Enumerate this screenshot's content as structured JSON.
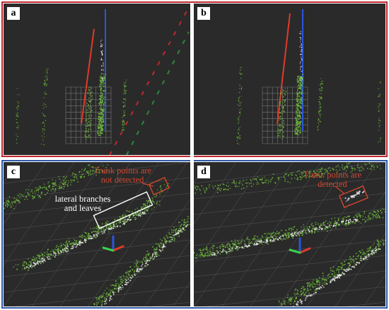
{
  "panels": {
    "a": {
      "label": "a"
    },
    "b": {
      "label": "b"
    },
    "c": {
      "label": "c",
      "red_annotation": "Trunk points are not  detected",
      "white_annotation": "lateral branches and leaves"
    },
    "d": {
      "label": "d",
      "red_annotation": "Trunk points are detected"
    }
  },
  "colors": {
    "top_frame": "#c0282e",
    "bottom_frame": "#2f5aa8",
    "background": "#2a2a2a",
    "foliage": "#6fbe3a",
    "trunk": "#f2f2f2",
    "axis_red": "#e03a2a",
    "axis_green": "#3bd14a",
    "axis_blue": "#2a55e0"
  }
}
